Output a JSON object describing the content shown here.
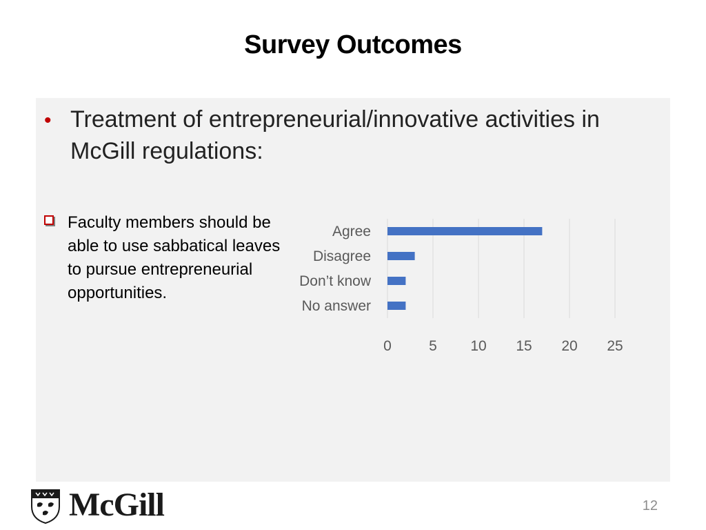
{
  "slide": {
    "title": "Survey Outcomes",
    "bullet": "Treatment of entrepreneurial/innovative activities in McGill regulations:",
    "sub_bullet": "Faculty members should be able to use sabbatical leaves to pursue entrepreneurial opportunities.",
    "logo_text": "McGill",
    "page_number": "12"
  },
  "colors": {
    "bullet": "#c00000",
    "bar": "#4472c4",
    "gridline": "#d9d9d9",
    "background_box": "#f2f2f2"
  },
  "chart_data": {
    "type": "bar",
    "orientation": "horizontal",
    "categories": [
      "Agree",
      "Disagree",
      "Don’t know",
      "No answer"
    ],
    "values": [
      17,
      3,
      2,
      2
    ],
    "xlim": [
      0,
      25
    ],
    "xticks": [
      0,
      5,
      10,
      15,
      20,
      25
    ],
    "title": "",
    "xlabel": "",
    "ylabel": "",
    "grid": true,
    "legend": "none"
  }
}
